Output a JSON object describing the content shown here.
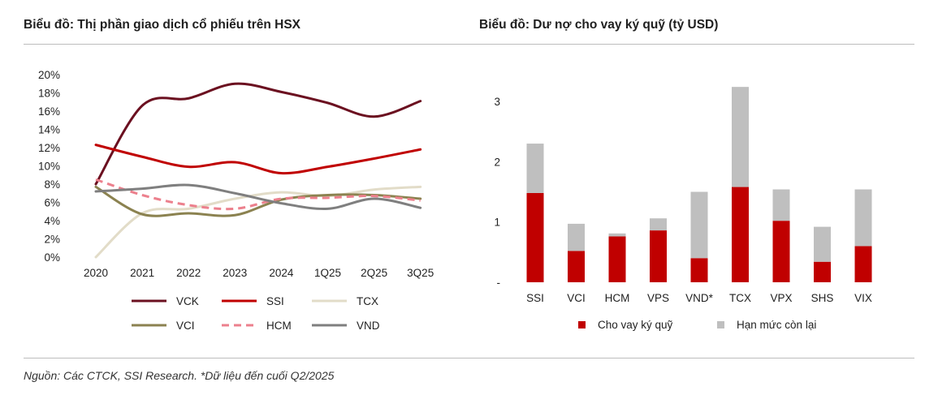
{
  "left_chart": {
    "title": "Biểu đồ: Thị phần giao dịch cổ phiếu trên HSX"
  },
  "right_chart": {
    "title": "Biểu đồ: Dư nợ cho vay ký quỹ (tỷ USD)"
  },
  "footer": {
    "source": "Nguồn: Các CTCK, SSI Research. *Dữ liệu đến cuối Q2/2025"
  },
  "chart_data": [
    {
      "type": "line",
      "title": "Biểu đồ: Thị phần giao dịch cổ phiếu trên HSX",
      "categories": [
        "2020",
        "2021",
        "2022",
        "2023",
        "2024",
        "1Q25",
        "2Q25",
        "3Q25"
      ],
      "y_ticks": [
        "0%",
        "2%",
        "4%",
        "6%",
        "8%",
        "10%",
        "12%",
        "14%",
        "16%",
        "18%",
        "20%"
      ],
      "ylim": [
        0,
        20
      ],
      "unit": "%",
      "series": [
        {
          "name": "VCK",
          "color": "#6b1020",
          "dash": "",
          "values": [
            8.0,
            16.6,
            17.4,
            19.0,
            18.1,
            16.9,
            15.4,
            17.1
          ]
        },
        {
          "name": "SSI",
          "color": "#c00000",
          "dash": "",
          "values": [
            12.3,
            11.0,
            9.9,
            10.4,
            9.2,
            9.9,
            10.8,
            11.8
          ]
        },
        {
          "name": "TCX",
          "color": "#e2dcc8",
          "dash": "",
          "values": [
            0.0,
            4.8,
            5.3,
            6.4,
            7.1,
            6.7,
            7.4,
            7.7
          ]
        },
        {
          "name": "VCI",
          "color": "#8b8250",
          "dash": "",
          "values": [
            7.7,
            4.7,
            4.8,
            4.6,
            6.3,
            6.8,
            6.8,
            6.4
          ]
        },
        {
          "name": "HCM",
          "color": "#ec808d",
          "dash": "9,6",
          "values": [
            8.5,
            6.8,
            5.7,
            5.3,
            6.4,
            6.5,
            6.7,
            6.2
          ]
        },
        {
          "name": "VND",
          "color": "#7f7f7f",
          "dash": "",
          "values": [
            7.2,
            7.5,
            7.9,
            7.0,
            5.9,
            5.3,
            6.4,
            5.4
          ]
        }
      ]
    },
    {
      "type": "bar",
      "stacked": true,
      "title": "Biểu đồ: Dư nợ cho vay ký quỹ (tỷ USD)",
      "categories": [
        "SSI",
        "VCI",
        "HCM",
        "VPS",
        "VND*",
        "TCX",
        "VPX",
        "SHS",
        "VIX"
      ],
      "y_ticks": [
        "-",
        "1",
        "2",
        "3"
      ],
      "ylim": [
        0,
        3.3
      ],
      "series": [
        {
          "name": "Cho vay ký quỹ",
          "color": "#c00000",
          "values": [
            1.48,
            0.52,
            0.76,
            0.86,
            0.4,
            1.58,
            1.02,
            0.34,
            0.6
          ]
        },
        {
          "name": "Hạn mức còn lại",
          "color": "#bfbfbf",
          "values": [
            0.82,
            0.45,
            0.05,
            0.2,
            1.1,
            1.66,
            0.52,
            0.58,
            0.94
          ]
        }
      ]
    }
  ]
}
